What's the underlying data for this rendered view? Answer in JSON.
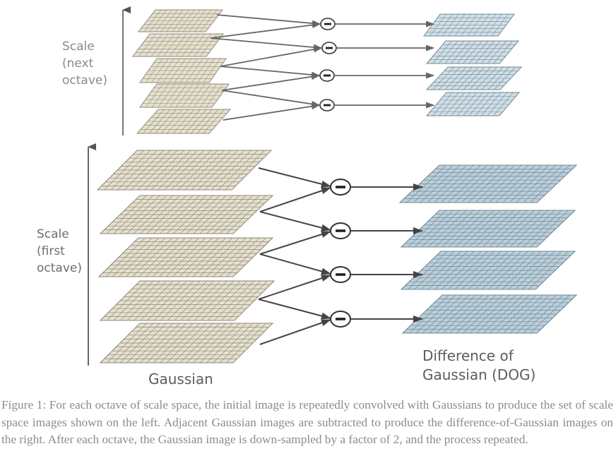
{
  "labels": {
    "scale_next": [
      "Scale",
      "(next",
      "octave)"
    ],
    "scale_first": [
      "Scale",
      "(first",
      "octave)"
    ],
    "gaussian": "Gaussian",
    "dog": [
      "Difference of",
      "Gaussian (DOG)"
    ]
  },
  "caption": "Figure 1: For each octave of scale space, the initial image is repeatedly convolved with Gaussians to produce the set of scale space images shown on the left. Adjacent Gaussian images are subtracted to produce the difference-of-Gaussian images on the right. After each octave, the Gaussian image is down-sampled by a factor of 2, and the process repeated.",
  "colors": {
    "gaussian_fill": "#e6e0cf",
    "gaussian_line": "#8f8a78",
    "dog_fill_upper": "#d2dfe6",
    "dog_fill_lower": "#bccfda",
    "dog_line": "#6f8a99",
    "arrow": "#444444"
  },
  "operator_symbol": "minus-circle"
}
